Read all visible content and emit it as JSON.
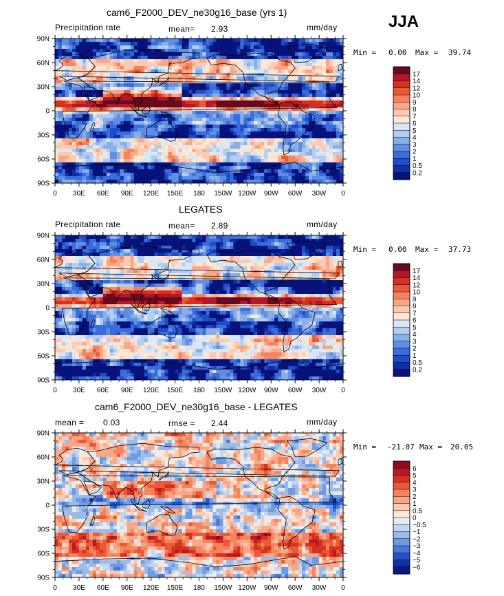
{
  "season": "JJA",
  "chart_data": [
    {
      "type": "heatmap",
      "title": "cam6_F2000_DEV_ne30g16_base (yrs 1)",
      "left_label": "Precipitation rate",
      "stat_label": "mean=",
      "stat_value": "2.93",
      "units": "mm/day",
      "min_label": "Min =",
      "min_value": "0.00",
      "max_label": "Max =",
      "max_value": "39.74",
      "x_ticks": [
        "0",
        "30E",
        "60E",
        "90E",
        "120E",
        "150E",
        "180",
        "150W",
        "120W",
        "90W",
        "60W",
        "30W",
        "0"
      ],
      "y_ticks": [
        "90N",
        "60N",
        "30N",
        "0",
        "30S",
        "60S",
        "90S"
      ],
      "colorbar_labels": [
        "17",
        "14",
        "12",
        "10",
        "9",
        "8",
        "7",
        "6",
        "5",
        "4",
        "3",
        "2",
        "1",
        "0.5",
        "0.2"
      ],
      "colorbar_colors": [
        "#670a1f",
        "#b2182b",
        "#d6301e",
        "#ea5a36",
        "#f4845e",
        "#f8a888",
        "#fccab0",
        "#fde6d4",
        "#d9e6f5",
        "#b3cdef",
        "#8aaee8",
        "#5f8ee2",
        "#3a6cdc",
        "#1f4dc8",
        "#0f2fa6",
        "#07137a"
      ]
    },
    {
      "type": "heatmap",
      "title": "LEGATES",
      "left_label": "Precipitation rate",
      "stat_label": "mean=",
      "stat_value": "2.89",
      "units": "mm/day",
      "min_label": "Min =",
      "min_value": "0.00",
      "max_label": "Max =",
      "max_value": "37.73",
      "x_ticks": [
        "0",
        "30E",
        "60E",
        "90E",
        "120E",
        "150E",
        "180",
        "150W",
        "120W",
        "90W",
        "60W",
        "30W",
        "0"
      ],
      "y_ticks": [
        "90N",
        "60N",
        "30N",
        "0",
        "30S",
        "60S",
        "90S"
      ],
      "colorbar_labels": [
        "17",
        "14",
        "12",
        "10",
        "9",
        "8",
        "7",
        "6",
        "5",
        "4",
        "3",
        "2",
        "1",
        "0.5",
        "0.2"
      ],
      "colorbar_colors": [
        "#670a1f",
        "#b2182b",
        "#d6301e",
        "#ea5a36",
        "#f4845e",
        "#f8a888",
        "#fccab0",
        "#fde6d4",
        "#d9e6f5",
        "#b3cdef",
        "#8aaee8",
        "#5f8ee2",
        "#3a6cdc",
        "#1f4dc8",
        "#0f2fa6",
        "#07137a"
      ]
    },
    {
      "type": "heatmap",
      "title": "cam6_F2000_DEV_ne30g16_base - LEGATES",
      "left_label": "mean =",
      "left_value": "0.03",
      "stat_label": "rmse =",
      "stat_value": "2.44",
      "units": "mm/day",
      "min_label": "Min =",
      "min_value": "-21.07",
      "max_label": "Max =",
      "max_value": "20.05",
      "x_ticks": [
        "0",
        "30E",
        "60E",
        "90E",
        "120E",
        "150E",
        "180",
        "150W",
        "120W",
        "90W",
        "60W",
        "30W",
        "0"
      ],
      "y_ticks": [
        "90N",
        "60N",
        "30N",
        "0",
        "30S",
        "60S",
        "90S"
      ],
      "colorbar_labels": [
        "6",
        "5",
        "4",
        "3",
        "2",
        "1",
        "0.5",
        "0",
        "−0.5",
        "−1",
        "−2",
        "−3",
        "−4",
        "−5",
        "−6"
      ],
      "colorbar_colors": [
        "#8c0d1f",
        "#b7182a",
        "#d6301e",
        "#ea5a36",
        "#f4845e",
        "#f8a888",
        "#fccab0",
        "#fde6d4",
        "#e3ecf8",
        "#c3d6f1",
        "#9bbbe9",
        "#6f9ae2",
        "#4777db",
        "#2452c6",
        "#1032a6",
        "#0a1a80"
      ]
    }
  ]
}
